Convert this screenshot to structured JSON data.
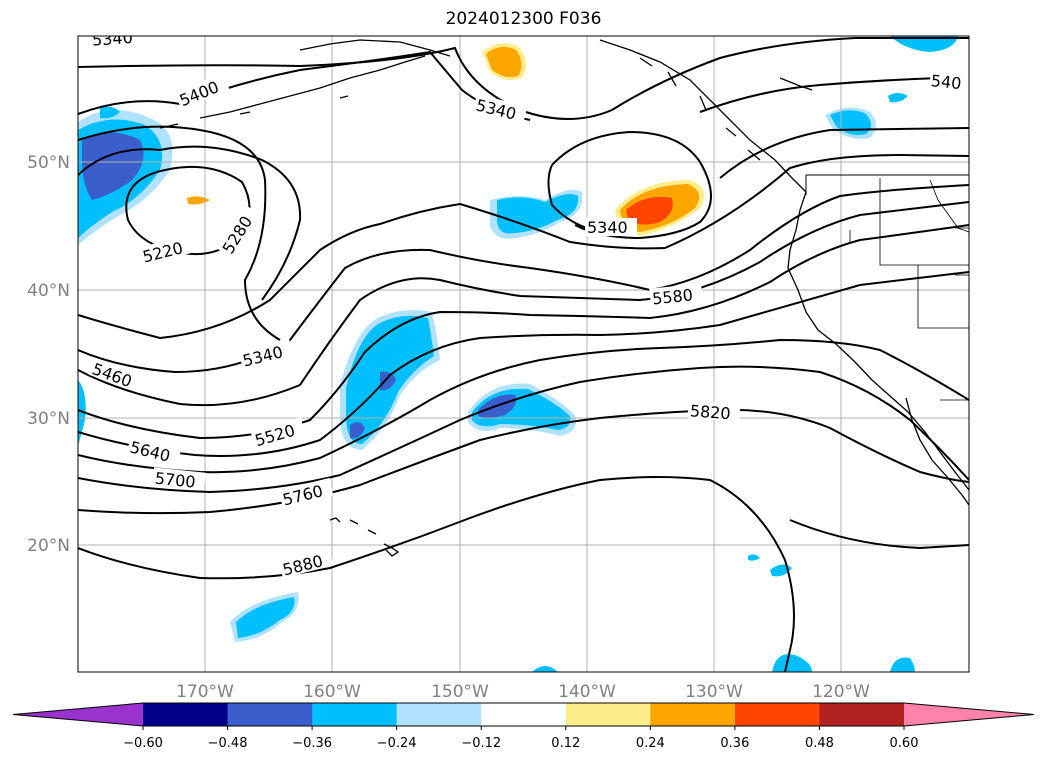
{
  "title": "2024012300 F036",
  "latitude_labels": [
    "50°N",
    "40°N",
    "30°N",
    "20°N"
  ],
  "longitude_labels": [
    "170°W",
    "160°W",
    "150°W",
    "140°W",
    "130°W",
    "120°W"
  ],
  "contour_labels": [
    "5340",
    "5400",
    "5220",
    "5280",
    "5340",
    "5340",
    "5340",
    "540",
    "5580",
    "5460",
    "5520",
    "5640",
    "5700",
    "5760",
    "5820",
    "5880"
  ],
  "colorbar": {
    "ticks": [
      "−0.60",
      "−0.48",
      "−0.36",
      "−0.24",
      "−0.12",
      "0.12",
      "0.24",
      "0.36",
      "0.48",
      "0.60"
    ],
    "colors": [
      "#9a32cd",
      "#00008b",
      "#3a5fcd",
      "#00bfff",
      "#b0e2ff",
      "#ffffff",
      "#ffec8b",
      "#ffa500",
      "#ff4500",
      "#b22222",
      "#ff82ab"
    ]
  }
}
